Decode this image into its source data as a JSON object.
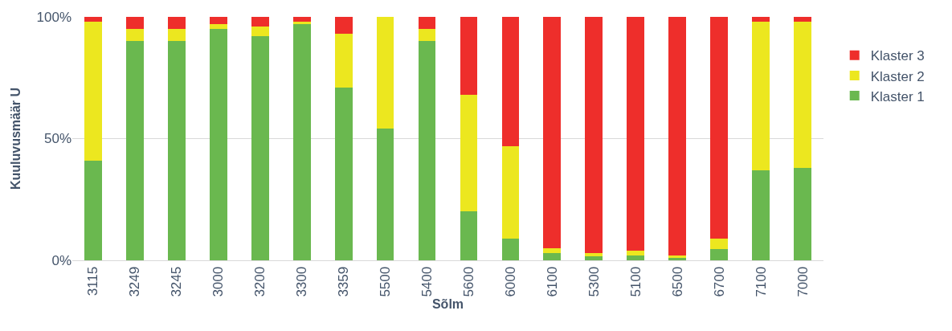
{
  "chart_data": {
    "type": "bar",
    "stacked": true,
    "xlabel": "Sõlm",
    "ylabel": "Kuuluvusmäär U",
    "categories": [
      "3115",
      "3249",
      "3245",
      "3000",
      "3200",
      "3300",
      "3359",
      "5500",
      "5400",
      "5600",
      "6000",
      "6100",
      "5300",
      "5100",
      "6500",
      "6700",
      "7100",
      "7000"
    ],
    "series": [
      {
        "name": "Klaster 1",
        "color": "#6ab84f",
        "values": [
          41,
          90,
          90,
          95,
          92,
          97,
          71,
          54,
          90,
          20,
          9,
          3,
          1.5,
          2,
          1,
          4.5,
          37,
          38
        ]
      },
      {
        "name": "Klaster 2",
        "color": "#ece71f",
        "values": [
          57,
          5,
          5,
          2,
          4,
          1,
          22,
          46,
          5,
          48,
          38,
          2,
          1.5,
          2,
          1,
          4.5,
          61,
          60
        ]
      },
      {
        "name": "Klaster 3",
        "color": "#ee2e2b",
        "values": [
          2,
          5,
          5,
          3,
          4,
          2,
          7,
          0,
          5,
          32,
          53,
          95,
          97,
          96,
          98,
          91,
          2,
          2
        ]
      }
    ],
    "ylim": [
      0,
      100
    ],
    "yticks": [
      {
        "value": 0,
        "label": "0%"
      },
      {
        "value": 50,
        "label": "50%"
      },
      {
        "value": 100,
        "label": "100%"
      }
    ],
    "grid": "y",
    "legend": "right"
  }
}
